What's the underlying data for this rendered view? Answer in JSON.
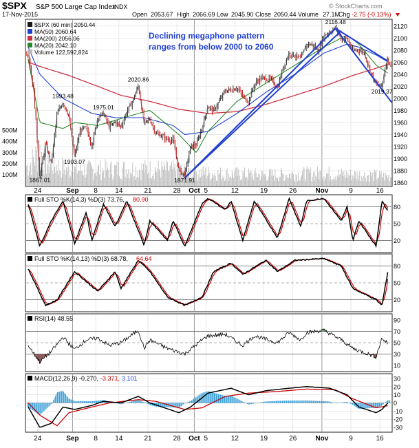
{
  "header": {
    "symbol": "$SPX",
    "name": "S&P 500 Large Cap Index",
    "exchange": "INDX",
    "date": "17-Nov-2015",
    "open_label": "Open",
    "open": "2053.67",
    "high_label": "High",
    "high": "2066.69",
    "low_label": "Low",
    "low": "2045.90",
    "close_label": "Close",
    "close": "2050.44",
    "volume_label": "Volume",
    "volume": "27.1M",
    "chg_label": "Chg",
    "chg": "-2.75 (-0.13%)",
    "watermark": "© StockCharts.com"
  },
  "colors": {
    "price_up": "#1a1a1a",
    "price_down": "#cc0000",
    "ma50": "#1f3fd0",
    "ma200": "#cc3344",
    "ma20": "#2a8a2a",
    "trendline": "#1f3fd0",
    "annotation": "#1f3fd0",
    "k_line": "#000000",
    "d_line": "#cc0000",
    "rsi_line": "#000000",
    "rsi_fill": "#8b5a5a",
    "macd_line": "#000000",
    "signal_line": "#cc0000",
    "hist": "#3aa0d8",
    "volume": "#b8b8b8"
  },
  "x_labels": [
    "24",
    "Sep",
    "8",
    "14",
    "21",
    "28",
    "Oct",
    "5",
    "12",
    "19",
    "26",
    "Nov",
    "9",
    "16"
  ],
  "panels": {
    "price": {
      "legend": [
        {
          "text": "$SPX (60 min) 2050.44"
        },
        {
          "text": "MA(50) 2060.64"
        },
        {
          "text": "MA(200) 2056.06"
        },
        {
          "text": "MA(20) 2042.10"
        },
        {
          "text": "Volume 122,592,824"
        }
      ],
      "y_ticks": [
        "2120",
        "2100",
        "2080",
        "2060",
        "2040",
        "2020",
        "2000",
        "1980",
        "1960",
        "1940",
        "1920",
        "1900",
        "1880",
        "1860"
      ],
      "vol_ticks": [
        "500M",
        "400M",
        "300M",
        "200M",
        "100M"
      ],
      "annotation_line1": "Declining megaphone pattern",
      "annotation_line2": "ranges from below 2000 to 2060",
      "callouts": [
        {
          "text": "1867.01"
        },
        {
          "text": "1993.48"
        },
        {
          "text": "1975.01"
        },
        {
          "text": "1903.07"
        },
        {
          "text": "2020.86"
        },
        {
          "text": "1871.91"
        },
        {
          "text": "2116.48"
        },
        {
          "text": "2019.37"
        }
      ]
    },
    "sto1": {
      "title": "Full STO %K(14,3) %D(3) 73.76,",
      "value2": "80.90",
      "y_ticks": [
        "80",
        "50",
        "20"
      ]
    },
    "sto2": {
      "title": "Full STO %K(14,13) %D(3) 68.78,",
      "value2": "64.64",
      "y_ticks": [
        "80",
        "50",
        "20"
      ]
    },
    "rsi": {
      "title": "RSI(14) 48.55",
      "y_ticks": [
        "90",
        "70",
        "50",
        "30",
        "10"
      ]
    },
    "macd": {
      "title": "MACD(12,26,9) -0.270,",
      "value2": "-3.371,",
      "value3": "3.101",
      "y_ticks": [
        "30",
        "20",
        "10",
        "0",
        "-10",
        "-20",
        "-30"
      ]
    }
  },
  "chart_data": {
    "type": "line",
    "title": "$SPX S&P 500 Large Cap Index INDX (60 min)",
    "x_range": [
      "2015-08-20",
      "2015-11-17"
    ],
    "ylim_price": [
      1855,
      2130
    ],
    "ylim_volume_millions": [
      0,
      560
    ],
    "price_anchors": [
      [
        "08-20",
        2075
      ],
      [
        "08-21",
        2010
      ],
      [
        "08-24",
        1867.01
      ],
      [
        "08-25",
        1925
      ],
      [
        "08-26",
        1893
      ],
      [
        "08-27",
        1975
      ],
      [
        "08-28",
        1993.48
      ],
      [
        "08-31",
        1972
      ],
      [
        "09-01",
        1903.07
      ],
      [
        "09-02",
        1948
      ],
      [
        "09-03",
        1951
      ],
      [
        "09-04",
        1921
      ],
      [
        "09-08",
        1969
      ],
      [
        "09-09",
        1975.01
      ],
      [
        "09-10",
        1952
      ],
      [
        "09-11",
        1961
      ],
      [
        "09-14",
        1953
      ],
      [
        "09-15",
        1978
      ],
      [
        "09-16",
        1995
      ],
      [
        "09-17",
        2020.86
      ],
      [
        "09-18",
        1958
      ],
      [
        "09-21",
        1966
      ],
      [
        "09-22",
        1942
      ],
      [
        "09-23",
        1938
      ],
      [
        "09-24",
        1932
      ],
      [
        "09-25",
        1931
      ],
      [
        "09-28",
        1881
      ],
      [
        "09-29",
        1871.91
      ],
      [
        "09-30",
        1920
      ],
      [
        "10-01",
        1923
      ],
      [
        "10-02",
        1951
      ],
      [
        "10-05",
        1987
      ],
      [
        "10-06",
        1979
      ],
      [
        "10-07",
        1996
      ],
      [
        "10-08",
        2013
      ],
      [
        "10-09",
        2014
      ],
      [
        "10-12",
        2018
      ],
      [
        "10-13",
        2003
      ],
      [
        "10-14",
        1994
      ],
      [
        "10-15",
        2023
      ],
      [
        "10-16",
        2033
      ],
      [
        "10-19",
        2033
      ],
      [
        "10-20",
        2030
      ],
      [
        "10-21",
        2018
      ],
      [
        "10-22",
        2052
      ],
      [
        "10-23",
        2075
      ],
      [
        "10-26",
        2071
      ],
      [
        "10-27",
        2065
      ],
      [
        "10-28",
        2090
      ],
      [
        "10-29",
        2089
      ],
      [
        "10-30",
        2079
      ],
      [
        "11-02",
        2104
      ],
      [
        "11-03",
        2110
      ],
      [
        "11-04",
        2116.48
      ],
      [
        "11-05",
        2099
      ],
      [
        "11-06",
        2099
      ],
      [
        "11-09",
        2078
      ],
      [
        "11-10",
        2081
      ],
      [
        "11-11",
        2075
      ],
      [
        "11-12",
        2045
      ],
      [
        "11-13",
        2023
      ],
      [
        "11-16",
        2019.37
      ],
      [
        "11-16 pm",
        2053
      ],
      [
        "11-17",
        2066.69
      ],
      [
        "11-17 close",
        2050.44
      ]
    ],
    "ma50_anchors": [
      [
        "08-20",
        2085
      ],
      [
        "08-24",
        2040
      ],
      [
        "08-28",
        2000
      ],
      [
        "09-04",
        1975
      ],
      [
        "09-11",
        1968
      ],
      [
        "09-18",
        1968
      ],
      [
        "09-25",
        1955
      ],
      [
        "09-29",
        1940
      ],
      [
        "10-05",
        1945
      ],
      [
        "10-12",
        1975
      ],
      [
        "10-19",
        2010
      ],
      [
        "10-26",
        2040
      ],
      [
        "11-02",
        2075
      ],
      [
        "11-06",
        2090
      ],
      [
        "11-10",
        2085
      ],
      [
        "11-13",
        2072
      ],
      [
        "11-17",
        2060.64
      ]
    ],
    "ma200_anchors": [
      [
        "08-20",
        2060
      ],
      [
        "08-24",
        2053
      ],
      [
        "08-31",
        2038
      ],
      [
        "09-08",
        2020
      ],
      [
        "09-14",
        2005
      ],
      [
        "09-21",
        1995
      ],
      [
        "09-28",
        1982
      ],
      [
        "10-05",
        1975
      ],
      [
        "10-12",
        1978
      ],
      [
        "10-19",
        1990
      ],
      [
        "10-26",
        2005
      ],
      [
        "11-02",
        2020
      ],
      [
        "11-09",
        2038
      ],
      [
        "11-17",
        2056.06
      ]
    ],
    "ma20_anchors": [
      [
        "08-20",
        2065
      ],
      [
        "08-24",
        1960
      ],
      [
        "08-28",
        1950
      ],
      [
        "09-01",
        1960
      ],
      [
        "09-08",
        1955
      ],
      [
        "09-17",
        1975
      ],
      [
        "09-21",
        1980
      ],
      [
        "09-28",
        1940
      ],
      [
        "10-01",
        1910
      ],
      [
        "10-05",
        1945
      ],
      [
        "10-12",
        1995
      ],
      [
        "10-19",
        2025
      ],
      [
        "10-26",
        2055
      ],
      [
        "11-02",
        2085
      ],
      [
        "11-06",
        2105
      ],
      [
        "11-10",
        2090
      ],
      [
        "11-13",
        2055
      ],
      [
        "11-17",
        2042.1
      ]
    ],
    "trendlines": [
      {
        "from": [
          "09-29",
          1868
        ],
        "to": [
          "11-04",
          2116
        ]
      },
      {
        "from": [
          "09-29",
          1868
        ],
        "to": [
          "11-05",
          2112
        ]
      },
      {
        "from": [
          "11-04",
          2116
        ],
        "to": [
          "11-17",
          1993
        ]
      },
      {
        "from": [
          "11-04",
          2116
        ],
        "to": [
          "11-17",
          2062
        ]
      }
    ],
    "volume_millions_anchors": [
      [
        "08-20",
        260
      ],
      [
        "08-24",
        440
      ],
      [
        "08-25",
        300
      ],
      [
        "08-31",
        200
      ],
      [
        "09-17",
        220
      ],
      [
        "09-28",
        200
      ],
      [
        "10-05",
        160
      ],
      [
        "10-19",
        140
      ],
      [
        "11-02",
        160
      ],
      [
        "11-17",
        123
      ]
    ],
    "sto_fast": {
      "k_last": 73.76,
      "d_last": 80.9,
      "ylim": [
        0,
        100
      ],
      "k_anchors": [
        [
          "08-20",
          85
        ],
        [
          "08-24",
          10
        ],
        [
          "08-26",
          55
        ],
        [
          "08-28",
          90
        ],
        [
          "09-01",
          15
        ],
        [
          "09-03",
          70
        ],
        [
          "09-04",
          20
        ],
        [
          "09-09",
          85
        ],
        [
          "09-11",
          45
        ],
        [
          "09-15",
          90
        ],
        [
          "09-18",
          12
        ],
        [
          "09-21",
          55
        ],
        [
          "09-24",
          20
        ],
        [
          "09-25",
          55
        ],
        [
          "09-29",
          10
        ],
        [
          "10-02",
          85
        ],
        [
          "10-05",
          95
        ],
        [
          "10-08",
          75
        ],
        [
          "10-09",
          90
        ],
        [
          "10-13",
          20
        ],
        [
          "10-15",
          90
        ],
        [
          "10-21",
          25
        ],
        [
          "10-23",
          95
        ],
        [
          "10-27",
          45
        ],
        [
          "10-28",
          90
        ],
        [
          "11-02",
          95
        ],
        [
          "11-05",
          55
        ],
        [
          "11-06",
          80
        ],
        [
          "11-09",
          20
        ],
        [
          "11-10",
          55
        ],
        [
          "11-13",
          10
        ],
        [
          "11-16",
          90
        ],
        [
          "11-17",
          73.76
        ]
      ]
    },
    "sto_slow": {
      "k_last": 68.78,
      "d_last": 64.64,
      "ylim": [
        0,
        100
      ],
      "k_anchors": [
        [
          "08-20",
          75
        ],
        [
          "08-25",
          10
        ],
        [
          "08-27",
          20
        ],
        [
          "09-01",
          70
        ],
        [
          "09-08",
          35
        ],
        [
          "09-11",
          70
        ],
        [
          "09-14",
          40
        ],
        [
          "09-17",
          90
        ],
        [
          "09-21",
          70
        ],
        [
          "09-24",
          25
        ],
        [
          "09-29",
          10
        ],
        [
          "10-02",
          25
        ],
        [
          "10-06",
          70
        ],
        [
          "10-09",
          85
        ],
        [
          "10-13",
          65
        ],
        [
          "10-19",
          90
        ],
        [
          "10-21",
          70
        ],
        [
          "10-26",
          90
        ],
        [
          "11-02",
          93
        ],
        [
          "11-05",
          80
        ],
        [
          "11-09",
          40
        ],
        [
          "11-12",
          25
        ],
        [
          "11-13",
          20
        ],
        [
          "11-16",
          10
        ],
        [
          "11-17",
          68.78
        ]
      ]
    },
    "rsi": {
      "last": 48.55,
      "ylim": [
        0,
        100
      ],
      "anchors": [
        [
          "08-20",
          45
        ],
        [
          "08-24",
          16
        ],
        [
          "08-26",
          35
        ],
        [
          "08-28",
          60
        ],
        [
          "09-01",
          38
        ],
        [
          "09-03",
          55
        ],
        [
          "09-08",
          58
        ],
        [
          "09-10",
          45
        ],
        [
          "09-14",
          50
        ],
        [
          "09-17",
          72
        ],
        [
          "09-18",
          40
        ],
        [
          "09-21",
          55
        ],
        [
          "09-24",
          40
        ],
        [
          "09-29",
          30
        ],
        [
          "10-02",
          55
        ],
        [
          "10-05",
          62
        ],
        [
          "10-08",
          65
        ],
        [
          "10-13",
          45
        ],
        [
          "10-15",
          62
        ],
        [
          "10-21",
          50
        ],
        [
          "10-23",
          68
        ],
        [
          "10-27",
          55
        ],
        [
          "10-28",
          68
        ],
        [
          "11-02",
          72
        ],
        [
          "11-05",
          55
        ],
        [
          "11-09",
          40
        ],
        [
          "11-13",
          25
        ],
        [
          "11-16",
          58
        ],
        [
          "11-17",
          48.55
        ]
      ]
    },
    "macd": {
      "macd_last": -0.27,
      "signal_last": -3.371,
      "hist_last": 3.101,
      "ylim": [
        -35,
        35
      ],
      "macd_anchors": [
        [
          "08-20",
          -5
        ],
        [
          "08-24",
          -30
        ],
        [
          "08-26",
          -25
        ],
        [
          "08-28",
          -5
        ],
        [
          "09-01",
          -8
        ],
        [
          "09-04",
          -3
        ],
        [
          "09-09",
          2
        ],
        [
          "09-14",
          0
        ],
        [
          "09-17",
          8
        ],
        [
          "09-21",
          0
        ],
        [
          "09-28",
          -12
        ],
        [
          "09-30",
          -5
        ],
        [
          "10-05",
          12
        ],
        [
          "10-09",
          18
        ],
        [
          "10-14",
          10
        ],
        [
          "10-19",
          15
        ],
        [
          "10-23",
          18
        ],
        [
          "10-28",
          20
        ],
        [
          "11-03",
          18
        ],
        [
          "11-06",
          10
        ],
        [
          "11-10",
          -5
        ],
        [
          "11-13",
          -12
        ],
        [
          "11-16",
          -8
        ],
        [
          "11-17",
          -0.27
        ]
      ],
      "signal_anchors": [
        [
          "08-20",
          0
        ],
        [
          "08-24",
          -15
        ],
        [
          "08-27",
          -28
        ],
        [
          "08-31",
          -12
        ],
        [
          "09-04",
          -5
        ],
        [
          "09-10",
          0
        ],
        [
          "09-17",
          4
        ],
        [
          "09-22",
          2
        ],
        [
          "09-29",
          -8
        ],
        [
          "10-02",
          -6
        ],
        [
          "10-08",
          8
        ],
        [
          "10-14",
          12
        ],
        [
          "10-21",
          14
        ],
        [
          "10-28",
          17
        ],
        [
          "11-04",
          16
        ],
        [
          "11-09",
          5
        ],
        [
          "11-13",
          -6
        ],
        [
          "11-17",
          -3.371
        ]
      ]
    }
  }
}
